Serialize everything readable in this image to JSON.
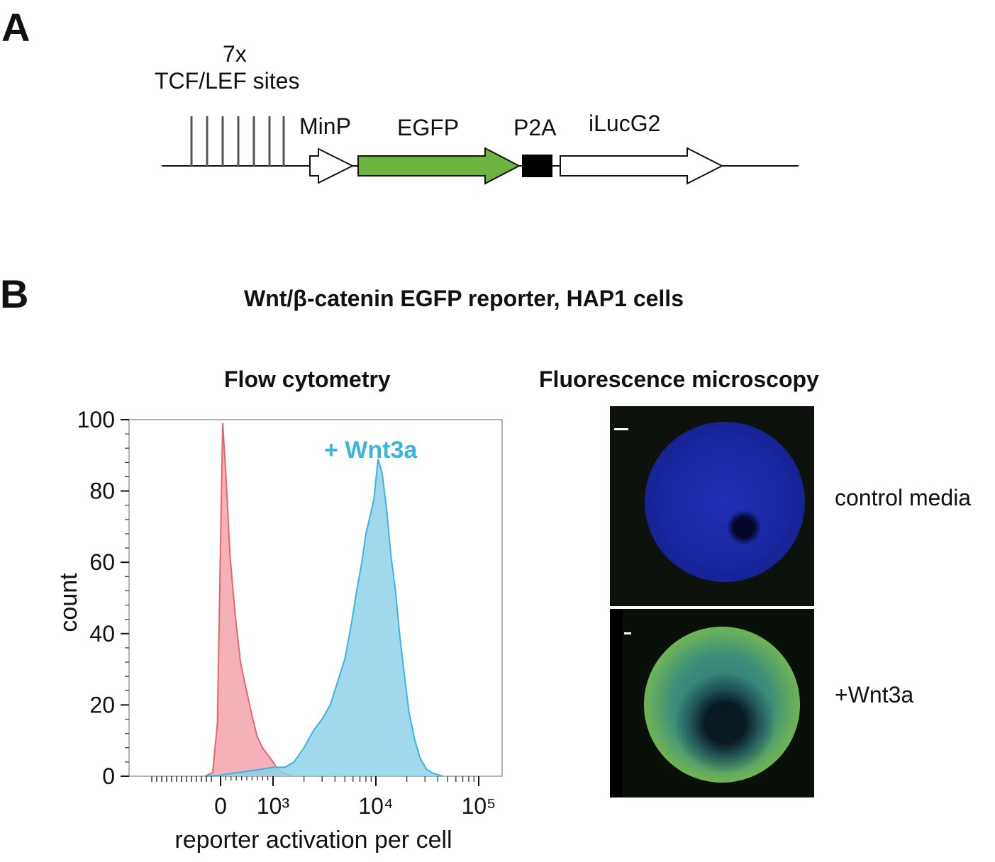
{
  "panel_a": {
    "letter": "A",
    "sites_count": "7x",
    "sites_label": "TCF/LEF sites",
    "labels": {
      "minp": "MinP",
      "egfp": "EGFP",
      "p2a": "P2A",
      "iluc": "iLucG2"
    },
    "colors": {
      "egfp": "#6db33f",
      "p2a": "#000000"
    }
  },
  "panel_b": {
    "letter": "B",
    "title": "Wnt/β-catenin EGFP reporter, HAP1 cells",
    "flow_title": "Flow cytometry",
    "microscopy_title": "Fluorescence microscopy",
    "micro_labels": {
      "top": "control media",
      "bottom": "+Wnt3a"
    }
  },
  "chart_data": {
    "type": "area",
    "xlabel": "reporter activation per cell",
    "ylabel": "count",
    "xscale": "biexponential",
    "ylim": [
      0,
      100
    ],
    "yticks": [
      "0",
      "20",
      "40",
      "60",
      "80",
      "100"
    ],
    "xticks": [
      "0",
      "10³",
      "10⁴",
      "10⁵"
    ],
    "annotation": "+ Wnt3a",
    "series": [
      {
        "color": "#e8636f",
        "fill": "#f2a3ab",
        "x": [
          -300,
          -150,
          -60,
          0,
          40,
          100,
          180,
          280,
          380,
          480,
          600,
          700,
          800,
          900,
          1000,
          1100,
          1300,
          1600
        ],
        "y": [
          0,
          1,
          15,
          65,
          99,
          85,
          62,
          45,
          32,
          25,
          17,
          11,
          8,
          6,
          4,
          2,
          0.8,
          0
        ]
      },
      {
        "color": "#3ab5dd",
        "fill": "#8fd1ea",
        "x": [
          -300,
          0,
          800,
          1000,
          1300,
          1600,
          2000,
          2500,
          3000,
          3600,
          4300,
          5000,
          5800,
          6500,
          7300,
          8000,
          8800,
          9600,
          10500,
          11500,
          12700,
          14000,
          15500,
          17000,
          19000,
          21000,
          24000,
          27000,
          31000,
          36000,
          45000
        ],
        "y": [
          0,
          0.3,
          2,
          2.5,
          2.5,
          4,
          8,
          13,
          16,
          20,
          27,
          33,
          43,
          52,
          60,
          68,
          73,
          78,
          89,
          85,
          75,
          62,
          52,
          40,
          28,
          18,
          10,
          5,
          2,
          0.8,
          0
        ]
      }
    ]
  }
}
